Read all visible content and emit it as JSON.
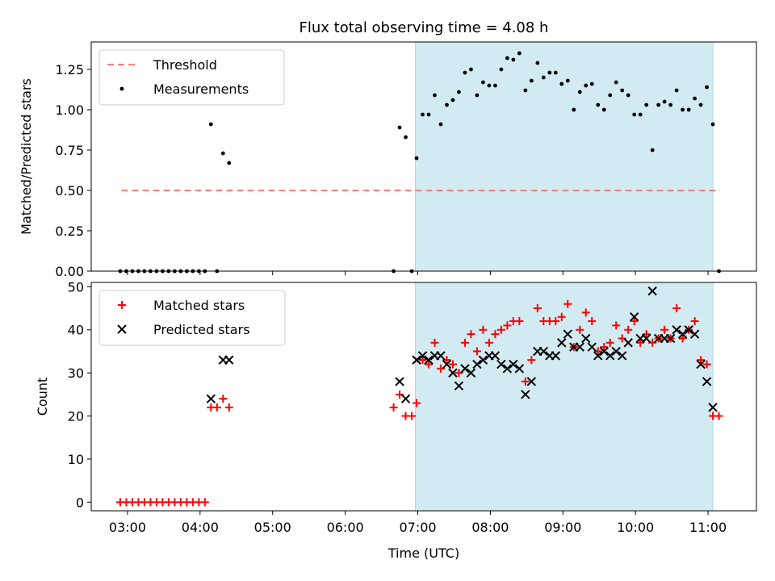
{
  "title": "Flux total observing time = 4.08 h",
  "chart_data": [
    {
      "type": "scatter",
      "ylabel": "Matched/Predicted stars",
      "xlabel": "",
      "xlim": [
        "02:30",
        "11:40"
      ],
      "ylim": [
        0,
        1.42
      ],
      "yticks": [
        "0.00",
        "0.25",
        "0.50",
        "0.75",
        "1.00",
        "1.25"
      ],
      "shaded_region": {
        "start": "06:58",
        "end": "11:04",
        "color": "#add8e6"
      },
      "legend_position": "top-left",
      "threshold": {
        "name": "Threshold",
        "value": 0.5,
        "start": "02:55",
        "end": "11:10",
        "color": "#ff7f7f",
        "style": "dashed"
      },
      "series": [
        {
          "name": "Measurements",
          "marker": "dot",
          "color": "#000000",
          "points": [
            [
              "02:54",
              0
            ],
            [
              "02:59",
              0
            ],
            [
              "03:04",
              0
            ],
            [
              "03:09",
              0
            ],
            [
              "03:14",
              0
            ],
            [
              "03:19",
              0
            ],
            [
              "03:24",
              0
            ],
            [
              "03:29",
              0
            ],
            [
              "03:34",
              0
            ],
            [
              "03:39",
              0
            ],
            [
              "03:44",
              0
            ],
            [
              "03:49",
              0
            ],
            [
              "03:54",
              0
            ],
            [
              "03:59",
              0
            ],
            [
              "04:04",
              0
            ],
            [
              "04:09",
              0.91
            ],
            [
              "04:14",
              0
            ],
            [
              "04:19",
              0.73
            ],
            [
              "04:24",
              0.67
            ],
            [
              "06:40",
              0
            ],
            [
              "06:45",
              0.89
            ],
            [
              "06:50",
              0.83
            ],
            [
              "06:55",
              0
            ],
            [
              "06:59",
              0.7
            ],
            [
              "07:04",
              0.97
            ],
            [
              "07:09",
              0.97
            ],
            [
              "07:14",
              1.09
            ],
            [
              "07:19",
              0.91
            ],
            [
              "07:24",
              1.03
            ],
            [
              "07:29",
              1.06
            ],
            [
              "07:34",
              1.11
            ],
            [
              "07:39",
              1.23
            ],
            [
              "07:44",
              1.25
            ],
            [
              "07:49",
              1.09
            ],
            [
              "07:54",
              1.17
            ],
            [
              "07:59",
              1.15
            ],
            [
              "08:04",
              1.15
            ],
            [
              "08:09",
              1.25
            ],
            [
              "08:14",
              1.32
            ],
            [
              "08:19",
              1.31
            ],
            [
              "08:24",
              1.35
            ],
            [
              "08:29",
              1.12
            ],
            [
              "08:34",
              1.18
            ],
            [
              "08:39",
              1.29
            ],
            [
              "08:44",
              1.2
            ],
            [
              "08:49",
              1.23
            ],
            [
              "08:54",
              1.23
            ],
            [
              "08:59",
              1.16
            ],
            [
              "09:04",
              1.18
            ],
            [
              "09:09",
              1.0
            ],
            [
              "09:14",
              1.11
            ],
            [
              "09:19",
              1.15
            ],
            [
              "09:24",
              1.16
            ],
            [
              "09:29",
              1.03
            ],
            [
              "09:34",
              1.0
            ],
            [
              "09:39",
              1.09
            ],
            [
              "09:44",
              1.17
            ],
            [
              "09:49",
              1.12
            ],
            [
              "09:54",
              1.09
            ],
            [
              "09:59",
              0.97
            ],
            [
              "10:04",
              0.97
            ],
            [
              "10:09",
              1.03
            ],
            [
              "10:14",
              0.75
            ],
            [
              "10:19",
              1.03
            ],
            [
              "10:24",
              1.05
            ],
            [
              "10:29",
              1.03
            ],
            [
              "10:34",
              1.12
            ],
            [
              "10:39",
              1.0
            ],
            [
              "10:44",
              1.0
            ],
            [
              "10:49",
              1.07
            ],
            [
              "10:54",
              1.03
            ],
            [
              "10:59",
              1.14
            ],
            [
              "11:04",
              0.91
            ],
            [
              "11:09",
              0
            ]
          ]
        }
      ]
    },
    {
      "type": "scatter",
      "ylabel": "Count",
      "xlabel": "Time (UTC)",
      "xlim": [
        "02:30",
        "11:40"
      ],
      "ylim": [
        -2,
        51
      ],
      "yticks": [
        "0",
        "10",
        "20",
        "30",
        "40",
        "50"
      ],
      "xticks": [
        "03:00",
        "04:00",
        "05:00",
        "06:00",
        "07:00",
        "08:00",
        "09:00",
        "10:00",
        "11:00"
      ],
      "shaded_region": {
        "start": "06:58",
        "end": "11:04",
        "color": "#add8e6"
      },
      "legend_position": "top-left",
      "series": [
        {
          "name": "Matched stars",
          "marker": "plus",
          "color": "#ff0000",
          "points": [
            [
              "02:54",
              0
            ],
            [
              "02:59",
              0
            ],
            [
              "03:04",
              0
            ],
            [
              "03:09",
              0
            ],
            [
              "03:14",
              0
            ],
            [
              "03:19",
              0
            ],
            [
              "03:24",
              0
            ],
            [
              "03:29",
              0
            ],
            [
              "03:34",
              0
            ],
            [
              "03:39",
              0
            ],
            [
              "03:44",
              0
            ],
            [
              "03:49",
              0
            ],
            [
              "03:54",
              0
            ],
            [
              "03:59",
              0
            ],
            [
              "04:04",
              0
            ],
            [
              "04:09",
              22
            ],
            [
              "04:14",
              22
            ],
            [
              "04:19",
              24
            ],
            [
              "04:24",
              22
            ],
            [
              "06:40",
              22
            ],
            [
              "06:45",
              25
            ],
            [
              "06:50",
              20
            ],
            [
              "06:55",
              20
            ],
            [
              "06:59",
              23
            ],
            [
              "07:04",
              33
            ],
            [
              "07:09",
              32
            ],
            [
              "07:14",
              37
            ],
            [
              "07:19",
              31
            ],
            [
              "07:24",
              33
            ],
            [
              "07:29",
              32
            ],
            [
              "07:34",
              30
            ],
            [
              "07:39",
              37
            ],
            [
              "07:44",
              39
            ],
            [
              "07:49",
              35
            ],
            [
              "07:54",
              40
            ],
            [
              "07:59",
              37
            ],
            [
              "08:04",
              39
            ],
            [
              "08:09",
              40
            ],
            [
              "08:14",
              41
            ],
            [
              "08:19",
              42
            ],
            [
              "08:24",
              42
            ],
            [
              "08:29",
              28
            ],
            [
              "08:34",
              33
            ],
            [
              "08:39",
              45
            ],
            [
              "08:44",
              42
            ],
            [
              "08:49",
              42
            ],
            [
              "08:54",
              42
            ],
            [
              "08:59",
              43
            ],
            [
              "09:04",
              46
            ],
            [
              "09:09",
              36
            ],
            [
              "09:14",
              40
            ],
            [
              "09:19",
              44
            ],
            [
              "09:24",
              42
            ],
            [
              "09:29",
              35
            ],
            [
              "09:34",
              36
            ],
            [
              "09:39",
              37
            ],
            [
              "09:44",
              41
            ],
            [
              "09:49",
              38
            ],
            [
              "09:54",
              40
            ],
            [
              "09:59",
              42
            ],
            [
              "10:04",
              37
            ],
            [
              "10:09",
              39
            ],
            [
              "10:14",
              37
            ],
            [
              "10:19",
              38
            ],
            [
              "10:24",
              40
            ],
            [
              "10:29",
              38
            ],
            [
              "10:34",
              45
            ],
            [
              "10:39",
              38
            ],
            [
              "10:44",
              40
            ],
            [
              "10:49",
              42
            ],
            [
              "10:54",
              33
            ],
            [
              "10:59",
              32
            ],
            [
              "11:04",
              20
            ],
            [
              "11:09",
              20
            ]
          ]
        },
        {
          "name": "Predicted stars",
          "marker": "x",
          "color": "#000000",
          "points": [
            [
              "04:09",
              24
            ],
            [
              "04:19",
              33
            ],
            [
              "04:24",
              33
            ],
            [
              "06:45",
              28
            ],
            [
              "06:50",
              24
            ],
            [
              "06:59",
              33
            ],
            [
              "07:04",
              34
            ],
            [
              "07:09",
              33
            ],
            [
              "07:14",
              34
            ],
            [
              "07:19",
              34
            ],
            [
              "07:24",
              32
            ],
            [
              "07:29",
              30
            ],
            [
              "07:34",
              27
            ],
            [
              "07:39",
              31
            ],
            [
              "07:44",
              30
            ],
            [
              "07:49",
              32
            ],
            [
              "07:54",
              33
            ],
            [
              "07:59",
              34
            ],
            [
              "08:04",
              34
            ],
            [
              "08:09",
              32
            ],
            [
              "08:14",
              31
            ],
            [
              "08:19",
              32
            ],
            [
              "08:24",
              31
            ],
            [
              "08:29",
              25
            ],
            [
              "08:34",
              28
            ],
            [
              "08:39",
              35
            ],
            [
              "08:44",
              35
            ],
            [
              "08:49",
              34
            ],
            [
              "08:54",
              34
            ],
            [
              "08:59",
              37
            ],
            [
              "09:04",
              39
            ],
            [
              "09:09",
              36
            ],
            [
              "09:14",
              36
            ],
            [
              "09:19",
              38
            ],
            [
              "09:24",
              36
            ],
            [
              "09:29",
              34
            ],
            [
              "09:34",
              35
            ],
            [
              "09:39",
              34
            ],
            [
              "09:44",
              35
            ],
            [
              "09:49",
              34
            ],
            [
              "09:54",
              37
            ],
            [
              "09:59",
              43
            ],
            [
              "10:04",
              38
            ],
            [
              "10:09",
              38
            ],
            [
              "10:14",
              49
            ],
            [
              "10:19",
              38
            ],
            [
              "10:24",
              38
            ],
            [
              "10:29",
              38
            ],
            [
              "10:34",
              40
            ],
            [
              "10:39",
              39
            ],
            [
              "10:44",
              40
            ],
            [
              "10:49",
              39
            ],
            [
              "10:54",
              32
            ],
            [
              "10:59",
              28
            ],
            [
              "11:04",
              22
            ]
          ]
        }
      ]
    }
  ]
}
